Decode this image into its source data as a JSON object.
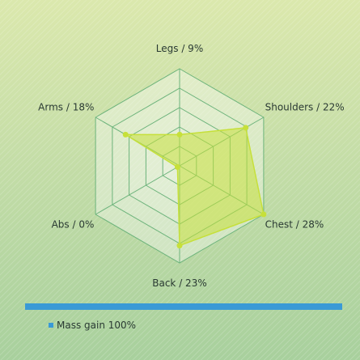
{
  "chart_data": {
    "type": "radar",
    "title": "",
    "axes": [
      {
        "label": "Legs / 9%",
        "value": 9
      },
      {
        "label": "Shoulders / 22%",
        "value": 22
      },
      {
        "label": "Chest / 28%",
        "value": 28
      },
      {
        "label": "Back / 23%",
        "value": 23
      },
      {
        "label": "Abs / 0%",
        "value": 0
      },
      {
        "label": "Arms / 18%",
        "value": 18
      }
    ],
    "range": [
      0,
      28
    ],
    "grid_rings": 5,
    "series": [
      {
        "name": "Mass gain",
        "color": "#c6e03a"
      }
    ],
    "legend": {
      "text": "Mass gain 100%",
      "color": "#3a9ad6",
      "placement": "bottom-left"
    }
  }
}
